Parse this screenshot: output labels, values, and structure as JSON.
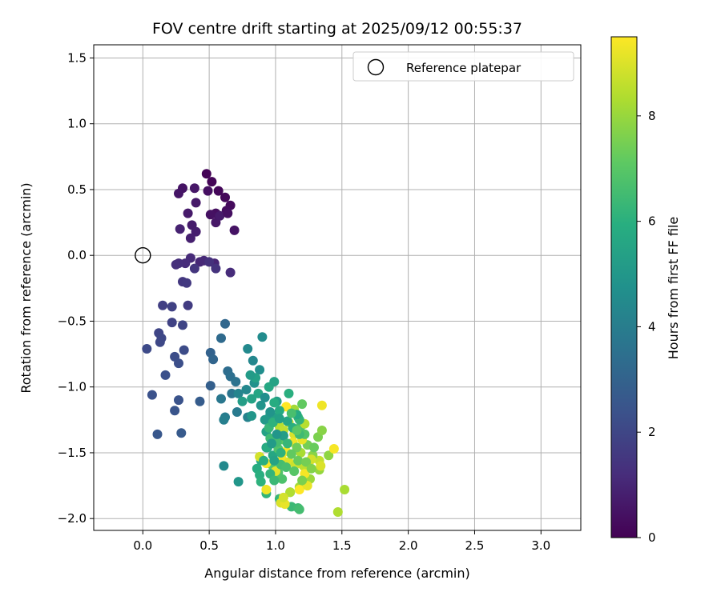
{
  "chart_data": {
    "type": "scatter",
    "title": "FOV centre drift starting at 2025/09/12 00:55:37",
    "xlabel": "Angular distance from reference (arcmin)",
    "ylabel": "Rotation from reference (arcmin)",
    "xlim": [
      -0.37,
      3.3
    ],
    "ylim": [
      -2.09,
      1.6
    ],
    "xticks": [
      0.0,
      0.5,
      1.0,
      1.5,
      2.0,
      2.5,
      3.0
    ],
    "xtick_labels": [
      "0.0",
      "0.5",
      "1.0",
      "1.5",
      "2.0",
      "2.5",
      "3.0"
    ],
    "yticks": [
      -2.0,
      -1.5,
      -1.0,
      -0.5,
      0.0,
      0.5,
      1.0,
      1.5
    ],
    "ytick_labels": [
      "−2.0",
      "−1.5",
      "−1.0",
      "−0.5",
      "0.0",
      "0.5",
      "1.0",
      "1.5"
    ],
    "grid": true,
    "legend": {
      "position": "top-right",
      "entries": [
        "Reference platepar"
      ]
    },
    "reference_point": {
      "x": 0.0,
      "y": 0.0
    },
    "colorbar": {
      "label": "Hours from first FF file",
      "colormap": "viridis",
      "range": [
        0,
        9.5
      ],
      "ticks": [
        0,
        2,
        4,
        6,
        8
      ],
      "tick_labels": [
        "0",
        "2",
        "4",
        "6",
        "8"
      ]
    },
    "points": [
      [
        0.48,
        0.62,
        0.05
      ],
      [
        0.52,
        0.56,
        0.1
      ],
      [
        0.57,
        0.49,
        0.15
      ],
      [
        0.62,
        0.44,
        0.2
      ],
      [
        0.66,
        0.38,
        0.25
      ],
      [
        0.63,
        0.34,
        0.3
      ],
      [
        0.55,
        0.32,
        0.35
      ],
      [
        0.49,
        0.49,
        0.4
      ],
      [
        0.51,
        0.31,
        0.45
      ],
      [
        0.69,
        0.19,
        0.5
      ],
      [
        0.3,
        0.51,
        0.5
      ],
      [
        0.27,
        0.47,
        0.55
      ],
      [
        0.39,
        0.51,
        0.6
      ],
      [
        0.4,
        0.4,
        0.65
      ],
      [
        0.34,
        0.32,
        0.7
      ],
      [
        0.37,
        0.23,
        0.75
      ],
      [
        0.4,
        0.18,
        0.8
      ],
      [
        0.36,
        0.13,
        0.85
      ],
      [
        0.28,
        0.2,
        0.9
      ],
      [
        0.55,
        0.25,
        0.6
      ],
      [
        0.58,
        0.3,
        0.7
      ],
      [
        0.64,
        0.32,
        0.4
      ],
      [
        0.54,
        -0.06,
        1.0
      ],
      [
        0.43,
        -0.05,
        1.05
      ],
      [
        0.46,
        -0.04,
        1.1
      ],
      [
        0.36,
        -0.02,
        1.15
      ],
      [
        0.32,
        -0.06,
        1.2
      ],
      [
        0.27,
        -0.06,
        1.25
      ],
      [
        0.25,
        -0.07,
        1.3
      ],
      [
        0.5,
        -0.05,
        1.35
      ],
      [
        0.55,
        -0.1,
        1.4
      ],
      [
        0.66,
        -0.13,
        1.2
      ],
      [
        0.39,
        -0.1,
        1.5
      ],
      [
        0.3,
        -0.2,
        1.55
      ],
      [
        0.33,
        -0.21,
        1.6
      ],
      [
        0.34,
        -0.38,
        1.7
      ],
      [
        0.15,
        -0.38,
        1.8
      ],
      [
        0.22,
        -0.39,
        1.85
      ],
      [
        0.22,
        -0.51,
        1.9
      ],
      [
        0.3,
        -0.53,
        1.95
      ],
      [
        0.12,
        -0.59,
        2.0
      ],
      [
        0.14,
        -0.63,
        2.05
      ],
      [
        0.13,
        -0.66,
        2.1
      ],
      [
        0.03,
        -0.71,
        2.15
      ],
      [
        0.31,
        -0.72,
        2.2
      ],
      [
        0.24,
        -0.77,
        2.25
      ],
      [
        0.27,
        -0.82,
        2.3
      ],
      [
        0.17,
        -0.91,
        2.35
      ],
      [
        0.07,
        -1.06,
        2.4
      ],
      [
        0.27,
        -1.1,
        2.45
      ],
      [
        0.24,
        -1.18,
        2.5
      ],
      [
        0.11,
        -1.36,
        2.6
      ],
      [
        0.29,
        -1.35,
        2.7
      ],
      [
        0.43,
        -1.11,
        2.8
      ],
      [
        0.51,
        -0.99,
        2.9
      ],
      [
        0.51,
        -0.74,
        3.0
      ],
      [
        0.53,
        -0.79,
        3.1
      ],
      [
        0.62,
        -0.52,
        3.2
      ],
      [
        0.59,
        -0.63,
        3.3
      ],
      [
        0.64,
        -0.88,
        3.4
      ],
      [
        0.66,
        -0.92,
        3.5
      ],
      [
        0.7,
        -0.96,
        3.6
      ],
      [
        0.67,
        -1.05,
        3.7
      ],
      [
        0.59,
        -1.09,
        3.8
      ],
      [
        0.71,
        -1.19,
        3.9
      ],
      [
        0.62,
        -1.23,
        4.0
      ],
      [
        0.61,
        -1.25,
        4.1
      ],
      [
        0.79,
        -1.23,
        4.2
      ],
      [
        0.72,
        -1.05,
        4.3
      ],
      [
        0.78,
        -1.02,
        4.4
      ],
      [
        0.79,
        -0.71,
        4.5
      ],
      [
        0.83,
        -0.8,
        4.4
      ],
      [
        0.9,
        -0.62,
        4.6
      ],
      [
        0.88,
        -0.87,
        4.7
      ],
      [
        0.84,
        -0.97,
        4.8
      ],
      [
        0.89,
        -1.14,
        4.9
      ],
      [
        0.82,
        -1.22,
        5.0
      ],
      [
        0.92,
        -1.25,
        5.1
      ],
      [
        0.96,
        -1.21,
        5.2
      ],
      [
        1.01,
        -1.11,
        5.3
      ],
      [
        1.0,
        -1.23,
        5.4
      ],
      [
        0.93,
        -1.34,
        5.5
      ],
      [
        0.93,
        -1.46,
        5.6
      ],
      [
        0.98,
        -1.52,
        5.7
      ],
      [
        0.89,
        -1.56,
        5.8
      ],
      [
        0.86,
        -1.62,
        5.9
      ],
      [
        0.88,
        -1.67,
        6.0
      ],
      [
        0.89,
        -1.72,
        6.1
      ],
      [
        0.93,
        -1.81,
        6.2
      ],
      [
        1.03,
        -1.85,
        6.3
      ],
      [
        1.12,
        -1.91,
        6.4
      ],
      [
        1.17,
        -1.92,
        6.5
      ],
      [
        1.18,
        -1.93,
        6.6
      ],
      [
        1.11,
        -1.8,
        6.7
      ],
      [
        1.05,
        -1.7,
        6.8
      ],
      [
        1.02,
        -1.65,
        6.9
      ],
      [
        0.97,
        -1.59,
        7.0
      ],
      [
        1.05,
        -1.4,
        7.1
      ],
      [
        1.1,
        -1.05,
        6.0
      ],
      [
        1.17,
        -1.23,
        6.4
      ],
      [
        1.19,
        -1.3,
        6.8
      ],
      [
        1.2,
        -1.13,
        7.2
      ],
      [
        1.24,
        -1.44,
        7.5
      ],
      [
        1.32,
        -1.38,
        7.6
      ],
      [
        1.35,
        -1.33,
        7.8
      ],
      [
        1.4,
        -1.52,
        7.9
      ],
      [
        1.33,
        -1.63,
        8.0
      ],
      [
        1.26,
        -1.7,
        8.1
      ],
      [
        1.18,
        -1.76,
        8.2
      ],
      [
        1.52,
        -1.78,
        8.3
      ],
      [
        1.47,
        -1.95,
        8.4
      ],
      [
        1.03,
        -1.3,
        8.5
      ],
      [
        1.06,
        -1.33,
        8.6
      ],
      [
        1.1,
        -1.27,
        8.8
      ],
      [
        1.14,
        -1.36,
        9.0
      ],
      [
        1.2,
        -1.4,
        9.2
      ],
      [
        1.13,
        -1.42,
        9.3
      ],
      [
        1.08,
        -1.49,
        9.4
      ],
      [
        1.05,
        -1.55,
        9.3
      ],
      [
        1.0,
        -1.64,
        9.1
      ],
      [
        1.1,
        -1.57,
        9.0
      ],
      [
        1.15,
        -1.59,
        8.8
      ],
      [
        1.21,
        -1.6,
        8.6
      ],
      [
        1.22,
        -1.66,
        9.4
      ],
      [
        1.18,
        -1.78,
        9.5
      ],
      [
        1.24,
        -1.75,
        9.2
      ],
      [
        1.11,
        -1.8,
        8.4
      ],
      [
        0.93,
        -1.78,
        9.3
      ],
      [
        0.88,
        -1.53,
        8.9
      ],
      [
        0.93,
        -1.58,
        9.4
      ],
      [
        1.04,
        -1.88,
        9.0
      ],
      [
        1.07,
        -1.89,
        9.2
      ],
      [
        1.06,
        -1.84,
        8.9
      ],
      [
        1.14,
        -1.17,
        8.2
      ],
      [
        1.22,
        -1.28,
        8.5
      ],
      [
        1.08,
        -1.15,
        9.5
      ],
      [
        1.35,
        -1.14,
        9.3
      ],
      [
        1.33,
        -1.56,
        8.7
      ],
      [
        1.34,
        -1.6,
        9.0
      ],
      [
        1.44,
        -1.47,
        9.4
      ],
      [
        1.28,
        -1.52,
        7.8
      ],
      [
        1.27,
        -1.55,
        8.9
      ],
      [
        1.19,
        -1.5,
        8.3
      ],
      [
        1.16,
        -1.46,
        7.4
      ],
      [
        1.12,
        -1.51,
        7.2
      ],
      [
        1.02,
        -1.47,
        6.9
      ],
      [
        1.01,
        -1.42,
        6.6
      ],
      [
        0.96,
        -1.39,
        6.5
      ],
      [
        0.95,
        -1.31,
        6.3
      ],
      [
        0.98,
        -1.27,
        6.1
      ],
      [
        0.99,
        -1.12,
        5.9
      ],
      [
        1.03,
        -1.18,
        5.8
      ],
      [
        0.95,
        -1.0,
        5.7
      ],
      [
        0.99,
        -0.96,
        5.5
      ],
      [
        0.85,
        -0.93,
        5.4
      ],
      [
        0.81,
        -0.91,
        5.2
      ],
      [
        0.87,
        -1.05,
        5.6
      ],
      [
        0.82,
        -1.09,
        5.5
      ],
      [
        0.75,
        -1.11,
        5.3
      ],
      [
        0.94,
        -1.46,
        5.9
      ],
      [
        0.91,
        -1.56,
        6.0
      ],
      [
        0.96,
        -1.66,
        6.2
      ],
      [
        0.99,
        -1.71,
        6.4
      ],
      [
        1.04,
        -1.59,
        6.6
      ],
      [
        1.08,
        -1.61,
        6.7
      ],
      [
        1.14,
        -1.64,
        7.0
      ],
      [
        1.17,
        -1.56,
        7.3
      ],
      [
        1.23,
        -1.57,
        7.5
      ],
      [
        1.27,
        -1.62,
        7.7
      ],
      [
        1.2,
        -1.71,
        7.6
      ],
      [
        1.29,
        -1.46,
        7.3
      ],
      [
        1.22,
        -1.36,
        6.9
      ],
      [
        1.18,
        -1.25,
        6.2
      ],
      [
        1.16,
        -1.21,
        5.8
      ],
      [
        1.09,
        -1.26,
        5.6
      ],
      [
        1.13,
        -1.31,
        6.0
      ],
      [
        1.18,
        -1.36,
        6.5
      ],
      [
        1.06,
        -1.37,
        5.3
      ],
      [
        1.01,
        -1.36,
        5.0
      ],
      [
        0.97,
        -1.43,
        5.2
      ],
      [
        0.72,
        -1.72,
        5.0
      ],
      [
        0.61,
        -1.6,
        4.5
      ],
      [
        0.99,
        -1.56,
        5.5
      ],
      [
        1.04,
        -1.5,
        6.1
      ],
      [
        1.09,
        -1.43,
        6.3
      ],
      [
        1.12,
        -1.2,
        6.7
      ],
      [
        1.16,
        -1.33,
        7.1
      ],
      [
        1.03,
        -1.24,
        5.4
      ],
      [
        0.96,
        -1.19,
        4.9
      ],
      [
        0.92,
        -1.08,
        4.7
      ]
    ]
  }
}
